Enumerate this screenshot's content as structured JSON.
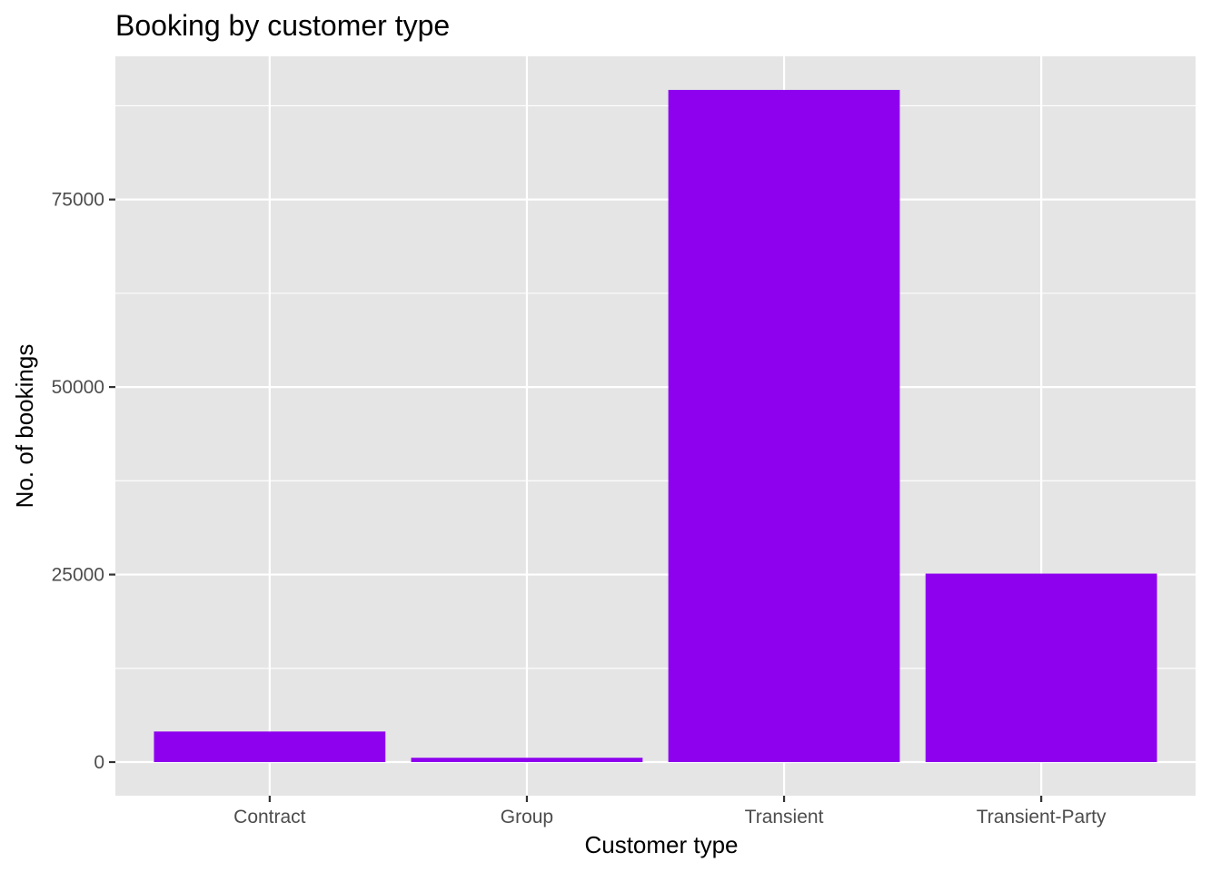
{
  "chart_data": {
    "type": "bar",
    "title": "Booking by customer type",
    "xlabel": "Customer type",
    "ylabel": "No. of bookings",
    "categories": [
      "Contract",
      "Group",
      "Transient",
      "Transient-Party"
    ],
    "values": [
      4076,
      577,
      89613,
      25124
    ],
    "ylim": [
      -4480,
      94090
    ],
    "yticks": [
      0,
      25000,
      50000,
      75000
    ],
    "ytick_labels": [
      "0",
      "25000",
      "50000",
      "75000"
    ],
    "grid": true,
    "legend": "none",
    "colors": {
      "bar": "#8E01EE",
      "panel": "#E5E5E5",
      "grid": "#FFFFFF",
      "tick_text": "#4D4D4D",
      "tick_mark": "#333333"
    }
  }
}
